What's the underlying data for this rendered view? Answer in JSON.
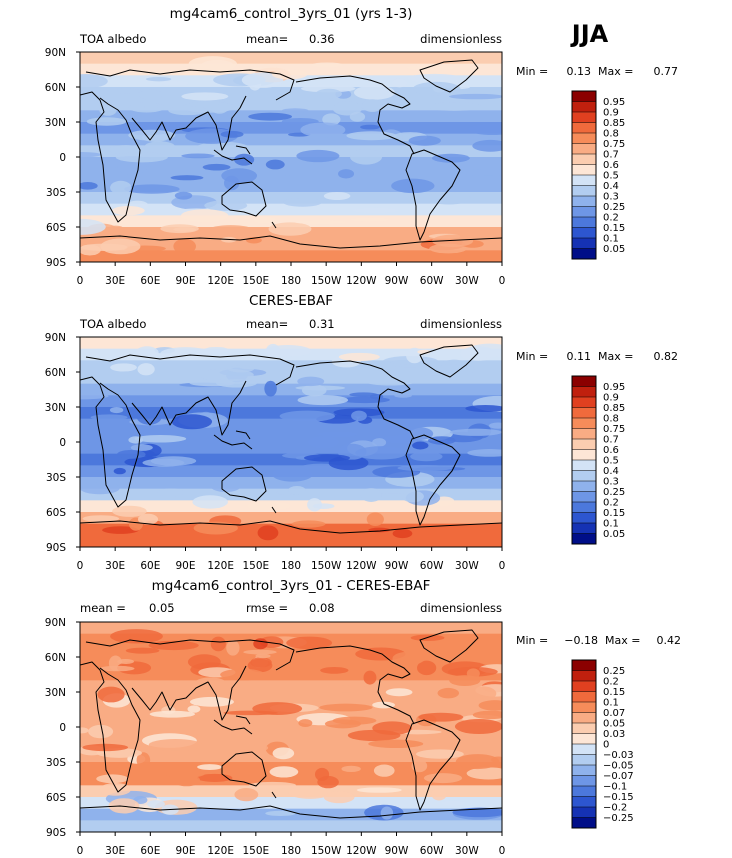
{
  "figure": {
    "season": "JJA",
    "x_ticks": [
      "0",
      "30E",
      "60E",
      "90E",
      "120E",
      "150E",
      "180",
      "150W",
      "120W",
      "90W",
      "60W",
      "30W",
      "0"
    ],
    "y_ticks": [
      "90N",
      "60N",
      "30N",
      "0",
      "30S",
      "60S",
      "90S"
    ]
  },
  "chart_data": [
    {
      "type": "heatmap",
      "title": "mg4cam6_control_3yrs_01 (yrs 1-3)",
      "left_label": "TOA albedo",
      "center_label": "mean=",
      "center_value": "0.36",
      "right_label": "dimensionless",
      "min_label": "Min =",
      "min_value": "0.13",
      "max_label": "Max =",
      "max_value": "0.77",
      "xlim": [
        0,
        360
      ],
      "ylim": [
        -90,
        90
      ],
      "colorbar": {
        "levels": [
          "0.95",
          "0.9",
          "0.85",
          "0.8",
          "0.75",
          "0.7",
          "0.6",
          "0.5",
          "0.4",
          "0.3",
          "0.25",
          "0.2",
          "0.15",
          "0.1",
          "0.05"
        ],
        "colors": [
          "#8b0000",
          "#c0200e",
          "#e04020",
          "#f06a3c",
          "#f68c5a",
          "#f9ac84",
          "#fbcdb0",
          "#fde6d6",
          "#d3e3f6",
          "#b2cdf0",
          "#8fb2ec",
          "#6e96e6",
          "#4c78dc",
          "#2d56d0",
          "#1532b4",
          "#000e88"
        ]
      },
      "zonal_mean_profile": {
        "lat": [
          85,
          75,
          65,
          55,
          45,
          35,
          25,
          15,
          5,
          -5,
          -15,
          -25,
          -35,
          -45,
          -55,
          -65,
          -75,
          -85
        ],
        "albedo": [
          0.62,
          0.58,
          0.44,
          0.38,
          0.33,
          0.28,
          0.24,
          0.26,
          0.3,
          0.28,
          0.25,
          0.26,
          0.33,
          0.44,
          0.55,
          0.7,
          0.74,
          0.78
        ]
      }
    },
    {
      "type": "heatmap",
      "title": "CERES-EBAF",
      "left_label": "TOA albedo",
      "center_label": "mean=",
      "center_value": "0.31",
      "right_label": "dimensionless",
      "min_label": "Min =",
      "min_value": "0.11",
      "max_label": "Max =",
      "max_value": "0.82",
      "xlim": [
        0,
        360
      ],
      "ylim": [
        -90,
        90
      ],
      "colorbar": {
        "levels": [
          "0.95",
          "0.9",
          "0.85",
          "0.8",
          "0.75",
          "0.7",
          "0.6",
          "0.5",
          "0.4",
          "0.3",
          "0.25",
          "0.2",
          "0.15",
          "0.1",
          "0.05"
        ],
        "colors": [
          "#8b0000",
          "#c0200e",
          "#e04020",
          "#f06a3c",
          "#f68c5a",
          "#f9ac84",
          "#fbcdb0",
          "#fde6d6",
          "#d3e3f6",
          "#b2cdf0",
          "#8fb2ec",
          "#6e96e6",
          "#4c78dc",
          "#2d56d0",
          "#1532b4",
          "#000e88"
        ]
      },
      "zonal_mean_profile": {
        "lat": [
          85,
          75,
          65,
          55,
          45,
          35,
          25,
          15,
          5,
          -5,
          -15,
          -25,
          -35,
          -45,
          -55,
          -65,
          -75,
          -85
        ],
        "albedo": [
          0.55,
          0.48,
          0.36,
          0.3,
          0.26,
          0.22,
          0.19,
          0.21,
          0.24,
          0.22,
          0.19,
          0.2,
          0.26,
          0.36,
          0.52,
          0.72,
          0.8,
          0.82
        ]
      }
    },
    {
      "type": "heatmap",
      "title": "mg4cam6_control_3yrs_01 - CERES-EBAF",
      "left_label": "mean =",
      "left_value": "0.05",
      "center_label": "rmse =",
      "center_value": "0.08",
      "right_label": "dimensionless",
      "min_label": "Min =",
      "min_value": "−0.18",
      "max_label": "Max =",
      "max_value": "0.42",
      "xlim": [
        0,
        360
      ],
      "ylim": [
        -90,
        90
      ],
      "colorbar": {
        "levels": [
          "0.25",
          "0.2",
          "0.15",
          "0.1",
          "0.07",
          "0.05",
          "0.03",
          "0",
          "−0.03",
          "−0.05",
          "−0.07",
          "−0.1",
          "−0.15",
          "−0.2",
          "−0.25"
        ],
        "colors": [
          "#8b0000",
          "#c0200e",
          "#e04020",
          "#f06a3c",
          "#f68c5a",
          "#f9ac84",
          "#fbcdb0",
          "#fde6d6",
          "#d3e3f6",
          "#b2cdf0",
          "#8fb2ec",
          "#6e96e6",
          "#4c78dc",
          "#2d56d0",
          "#1532b4",
          "#000e88"
        ]
      },
      "zonal_mean_profile": {
        "lat": [
          85,
          75,
          65,
          55,
          45,
          35,
          25,
          15,
          5,
          -5,
          -15,
          -25,
          -35,
          -45,
          -55,
          -65,
          -75,
          -85
        ],
        "albedo": [
          0.06,
          0.09,
          0.08,
          0.08,
          0.07,
          0.06,
          0.05,
          0.05,
          0.06,
          0.06,
          0.06,
          0.06,
          0.07,
          0.08,
          0.04,
          -0.02,
          -0.06,
          -0.04
        ]
      }
    }
  ]
}
